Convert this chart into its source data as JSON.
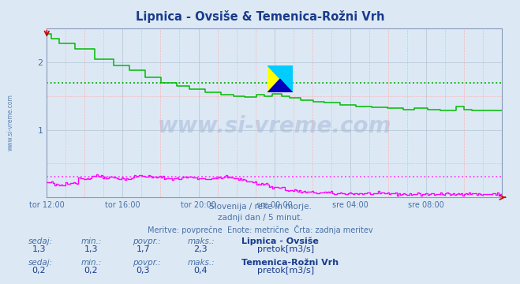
{
  "title": "Lipnica - Ovsiše & Temenica-Rožni Vrh",
  "title_color": "#1a3a8b",
  "bg_color": "#dce9f5",
  "plot_bg_color": "#dce9f5",
  "grid_major_color": "#aabccc",
  "grid_minor_color": "#ffaaaa",
  "tick_label_color": "#4a6fa5",
  "line1_color": "#00bb00",
  "line2_color": "#ff00ff",
  "avgline1_color": "#00aa00",
  "avgline2_color": "#ff44ff",
  "arrow_color": "#cc0000",
  "ylim": [
    0,
    2.5
  ],
  "yticks": [
    1,
    2
  ],
  "n_points": 288,
  "subtitle1": "Slovenija / reke in morje.",
  "subtitle2": "zadnji dan / 5 minut.",
  "subtitle3": "Meritve: povprečne  Enote: metrične  Črta: zadnja meritev",
  "subtitle_color": "#4a6fa5",
  "xtick_labels": [
    "tor 12:00",
    "tor 16:00",
    "tor 20:00",
    "sre 00:00",
    "sre 04:00",
    "sre 08:00"
  ],
  "stat_label_color": "#4a6fa5",
  "stat_value_color": "#1a3a8b",
  "station1_name": "Lipnica - Ovsiše",
  "station1_sedaj": "1,3",
  "station1_min": "1,3",
  "station1_povpr": "1,7",
  "station1_maks": "2,3",
  "station1_unit": "pretok[m3/s]",
  "station2_name": "Temenica-Rožni Vrh",
  "station2_sedaj": "0,2",
  "station2_min": "0,2",
  "station2_povpr": "0,3",
  "station2_maks": "0,4",
  "station2_unit": "pretok[m3/s]",
  "watermark": "www.si-vreme.com",
  "watermark_color": "#1a3a8b",
  "watermark_alpha": 0.15,
  "avg1": 1.7,
  "avg2": 0.3,
  "left_label": "www.si-vreme.com",
  "left_label_color": "#4a6fa5"
}
